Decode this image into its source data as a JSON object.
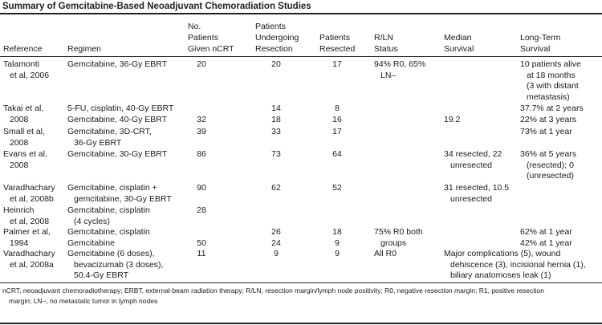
{
  "title": "Summary of Gemcitabine-Based Neoadjuvant Chemoradiation Studies",
  "headers": [
    [
      "Reference"
    ],
    [
      "Regimen"
    ],
    [
      "No.",
      "Patients",
      "Given nCRT"
    ],
    [
      "Patients",
      "Undergoing",
      "Resection"
    ],
    [
      "Patients",
      "Resected"
    ],
    [
      "R/LN",
      "Status"
    ],
    [
      "Median",
      "Survival"
    ],
    [
      "Long-Term",
      "Survival"
    ]
  ],
  "rows": [
    {
      "reference": [
        "Talamonti",
        "et al, 2006"
      ],
      "regimen": [
        "Gemcitabine, 36-Gy EBRT"
      ],
      "given": [
        "20"
      ],
      "undergoing": [
        "20"
      ],
      "resected": [
        "17"
      ],
      "status": [
        "94% R0, 65%",
        "LN–"
      ],
      "median": [],
      "longterm": [
        "10 patients alive",
        "at 18 months",
        "(3 with distant",
        "metastasis)"
      ]
    },
    {
      "reference": [
        "Takai et al,",
        "2008"
      ],
      "regimen": [
        "5-FU, cisplatin, 40-Gy EBRT",
        "Gemcitabine, 40-Gy EBRT"
      ],
      "given": [
        "",
        "32"
      ],
      "undergoing": [
        "14",
        "18"
      ],
      "resected": [
        "8",
        "16"
      ],
      "status": [],
      "median": [
        "",
        "19.2"
      ],
      "longterm": [
        "37.7% at 2 years",
        "22% at 3 years"
      ]
    },
    {
      "reference": [
        "Small et al,",
        "2008"
      ],
      "regimen": [
        "Gemcitabine, 3D-CRT,",
        "36-Gy EBRT"
      ],
      "given": [
        "39"
      ],
      "undergoing": [
        "33"
      ],
      "resected": [
        "17"
      ],
      "status": [],
      "median": [],
      "longterm": [
        "73% at 1 year"
      ]
    },
    {
      "reference": [
        "Evans et al,",
        "2008"
      ],
      "regimen": [
        "Gemcitabine, 30-Gy EBRT"
      ],
      "given": [
        "86"
      ],
      "undergoing": [
        "73"
      ],
      "resected": [
        "64"
      ],
      "status": [],
      "median": [
        "34 resected, 22",
        "unresected"
      ],
      "longterm": [
        "36% at 5 years",
        "(resected); 0",
        "(unresected)"
      ]
    },
    {
      "reference": [
        "Varadhachary",
        "et al, 2008b"
      ],
      "regimen": [
        "Gemcitabine, cisplatin +",
        "gemcitabine, 30-Gy EBRT"
      ],
      "given": [
        "90"
      ],
      "undergoing": [
        "62"
      ],
      "resected": [
        "52"
      ],
      "status": [],
      "median": [
        "31 resected, 10.5",
        "unresected"
      ],
      "longterm": []
    },
    {
      "reference": [
        "Heinrich",
        "et al, 2008"
      ],
      "regimen": [
        "Gemcitabine, cisplatin",
        "(4 cycles)"
      ],
      "given": [
        "28"
      ],
      "undergoing": [],
      "resected": [],
      "status": [],
      "median": [],
      "longterm": []
    },
    {
      "reference": [
        "Palmer et al,",
        "1994"
      ],
      "regimen": [
        "Gemcitabine, cisplatin",
        "Gemcitabine"
      ],
      "given": [
        "",
        "50"
      ],
      "undergoing": [
        "26",
        "24"
      ],
      "resected": [
        "18",
        "9"
      ],
      "status": [
        "75% R0 both",
        "groups"
      ],
      "median": [],
      "longterm": [
        "62% at 1 year",
        "42% at 1 year"
      ]
    },
    {
      "reference": [
        "Varadhachary",
        "et al, 2008a"
      ],
      "regimen": [
        "Gemcitabine (6 doses),",
        "bevacizumab (3 doses),",
        "50.4-Gy EBRT"
      ],
      "given": [
        "11"
      ],
      "undergoing": [
        "9"
      ],
      "resected": [
        "9"
      ],
      "status": [
        "All R0"
      ],
      "median": [
        "Major complications (5), wound",
        "dehiscence (3), incisional hernia (1),",
        "biliary anatomoses leak (1)"
      ],
      "longterm": []
    }
  ],
  "footnote": [
    "nCRT, neoadjuvant chemoradiotherapy; ERBT, external-beam radiation therapy; R/LN, resection margin/lymph node positivity; R0, negative resection margin; R1, positive resection",
    "margin; LN–, no metastatic tumor in lymph nodes"
  ]
}
